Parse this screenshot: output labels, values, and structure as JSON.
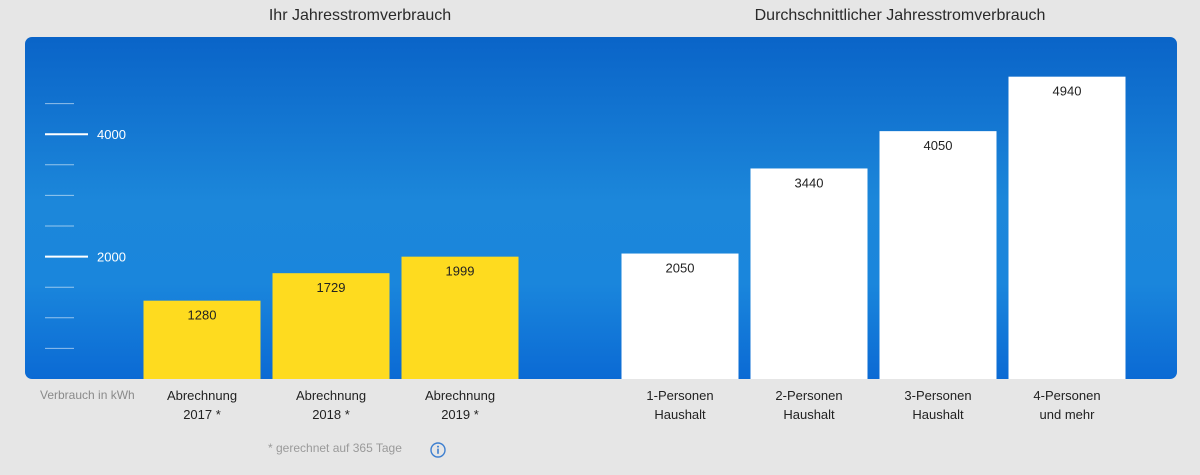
{
  "titles": {
    "own": "Ihr Jahresstromverbrauch",
    "average": "Durchschnittlicher Jahresstromverbrauch"
  },
  "axis_unit_label": "Verbrauch in kWh",
  "footnote": "* gerechnet auf 365 Tage",
  "icons": {
    "info": "info-icon"
  },
  "colors": {
    "own_bar": "#fedb1f",
    "avg_bar": "#ffffff",
    "panel_top": "#0a64c8",
    "panel_mid": "#1c87da",
    "tick": "#ffffff",
    "info_icon": "#3d7fd0"
  },
  "chart_data": {
    "type": "bar",
    "ylim": [
      0,
      5000
    ],
    "y_ticks": [
      {
        "value": 4000,
        "label": "4000"
      },
      {
        "value": 2000,
        "label": "2000"
      }
    ],
    "ylabel": "Verbrauch in kWh",
    "groups": [
      {
        "title": "Ihr Jahresstromverbrauch",
        "categories": [
          "Abrechnung\n2017 *",
          "Abrechnung\n2018 *",
          "Abrechnung\n2019 *"
        ],
        "values": [
          1280,
          1729,
          1999
        ]
      },
      {
        "title": "Durchschnittlicher Jahresstromverbrauch",
        "categories": [
          "1-Personen\nHaushalt",
          "2-Personen\nHaushalt",
          "3-Personen\nHaushalt",
          "4-Personen\nund mehr"
        ],
        "values": [
          2050,
          3440,
          4050,
          4940
        ]
      }
    ]
  }
}
